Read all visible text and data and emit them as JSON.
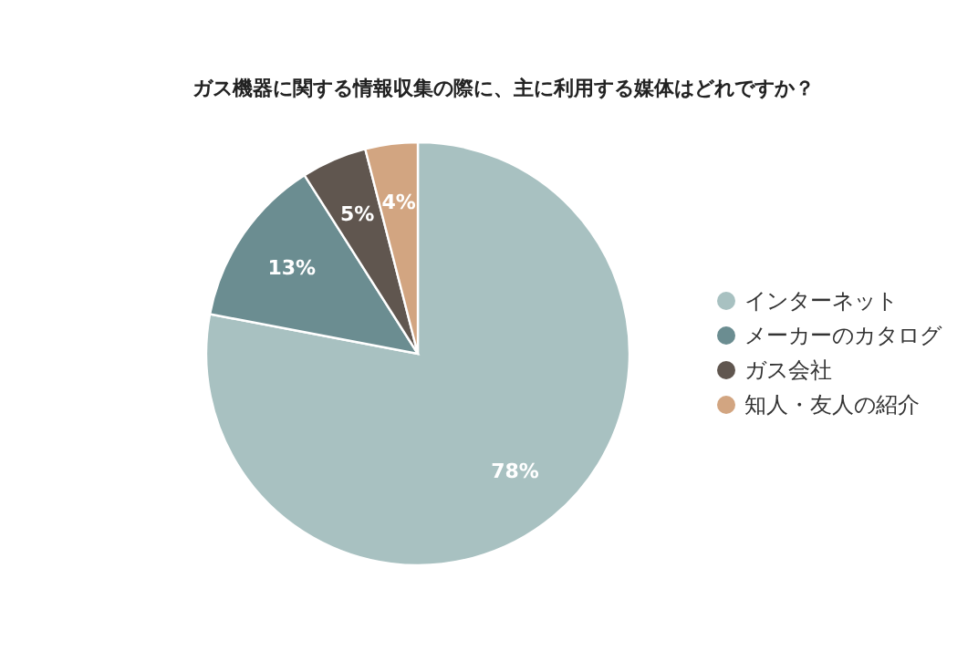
{
  "chart_data": {
    "type": "pie",
    "title": "ガス機器に関する情報収集の際に、主に利用する媒体はどれですか？",
    "categories": [
      "インターネット",
      "メーカーのカタログ",
      "ガス会社",
      "知人・友人の紹介"
    ],
    "values": [
      78,
      13,
      5,
      4
    ],
    "colors": [
      "#a8c1c1",
      "#6b8d91",
      "#60564f",
      "#d2a581"
    ],
    "value_labels": [
      "78%",
      "13%",
      "5%",
      "4%"
    ],
    "legend": "right"
  }
}
